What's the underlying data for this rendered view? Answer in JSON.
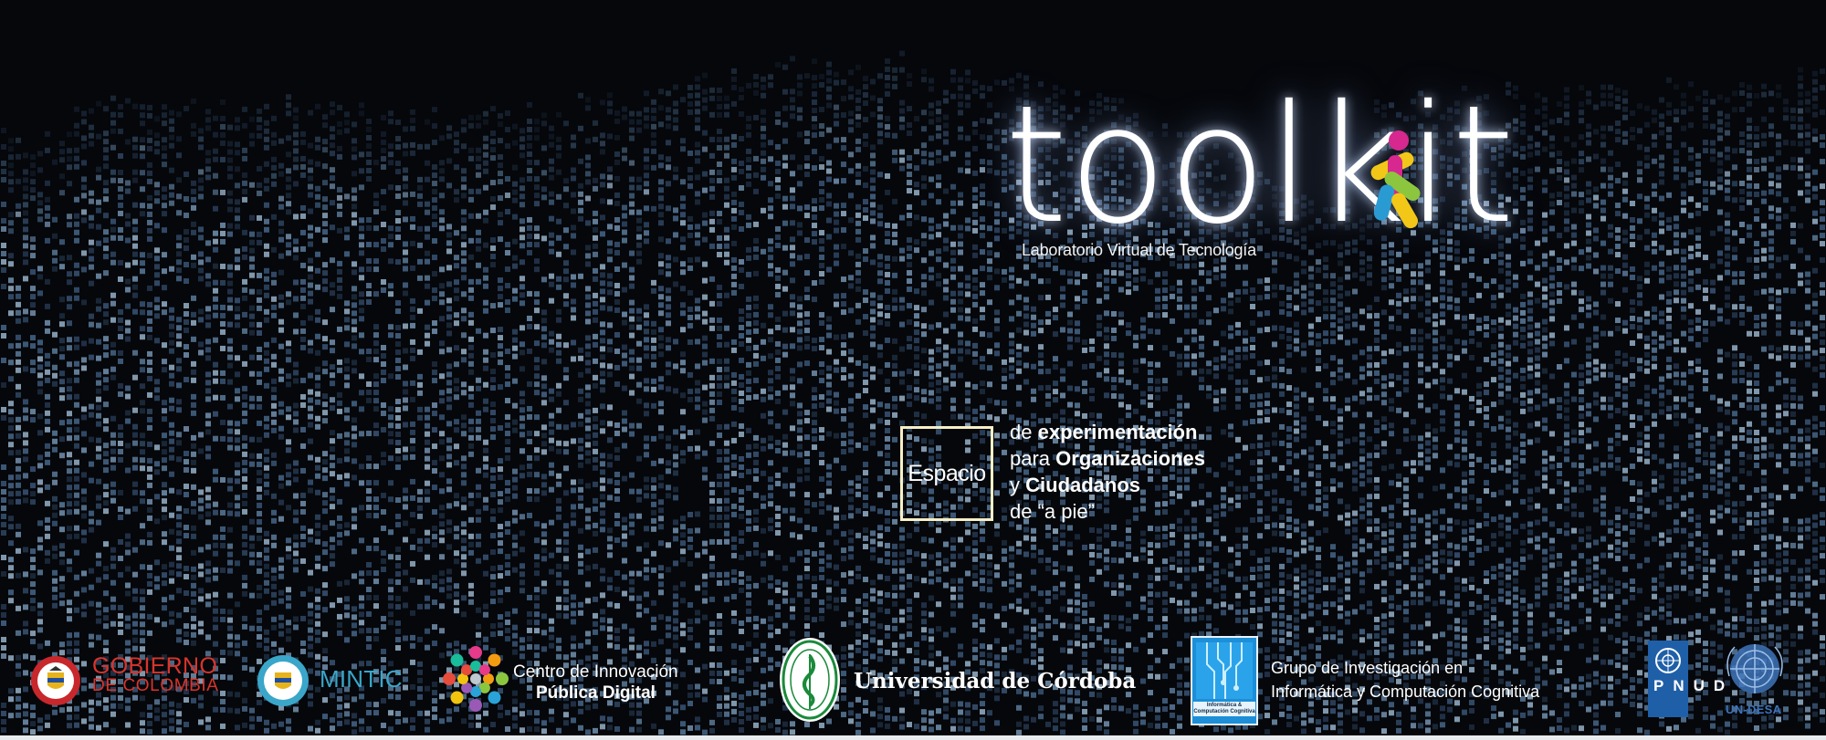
{
  "logo": {
    "word": "toolkit",
    "tagline": "Laboratorio Virtual de Tecnología",
    "figure_colors": [
      "#d6288f",
      "#f2c718",
      "#2a9bd2",
      "#8cc63f"
    ]
  },
  "espacio": {
    "box_word": "Espacio",
    "line1_pre": "de ",
    "line1_bold": "experimentación",
    "line2_pre": "para ",
    "line2_bold": "Organizaciones",
    "line3_pre": "y ",
    "line3_bold": "Ciudadanos",
    "line4": "de “a pie”",
    "border_color": "#f7efc6"
  },
  "partners": {
    "gobierno_line1": "GOBIERNO",
    "gobierno_line2": "DE COLOMBIA",
    "mintic": "MINTIC",
    "centro_line1": "Centro de Innovación",
    "centro_line2": "Pública Digital",
    "universidad": "Universidad de Córdoba",
    "grupo_badge": "Informática & Computación Cognitiva",
    "grupo_line1": "Grupo de Investigación en",
    "grupo_line2": "Informática y Computación Cognitiva",
    "pnud_letters": "PNUD",
    "undesa": "UN-DESA"
  },
  "colors": {
    "background": "#05070b",
    "gobierno_red": "#d9342b",
    "mintic_blue": "#3aa6c9",
    "pnud_blue": "#1f5fa8"
  }
}
